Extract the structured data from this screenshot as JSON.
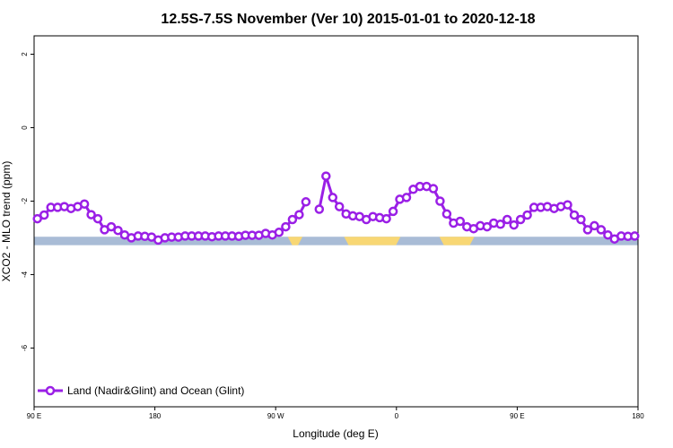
{
  "chart_data": {
    "type": "line",
    "title": "12.5S-7.5S November (Ver 10)   2015-01-01 to 2020-12-18",
    "xlabel": "Longitude (deg E)",
    "ylabel": "XCO2 - MLO trend (ppm)",
    "x_ticks": [
      {
        "value": 90,
        "label": "90 E"
      },
      {
        "value": 180,
        "label": "180"
      },
      {
        "value": 270,
        "label": "90 W"
      },
      {
        "value": 360,
        "label": "0"
      },
      {
        "value": 450,
        "label": "90 E"
      },
      {
        "value": 540,
        "label": "180"
      }
    ],
    "y_ticks": [
      {
        "value": 2,
        "label": "2"
      },
      {
        "value": 0,
        "label": "0"
      },
      {
        "value": -2,
        "label": "-2"
      },
      {
        "value": -4,
        "label": "-4"
      },
      {
        "value": -6,
        "label": "-6"
      }
    ],
    "xlim": [
      90,
      540
    ],
    "ylim": [
      -7.6,
      2.5
    ],
    "legend": {
      "position": "bottom-left"
    },
    "series": [
      {
        "name": "Land (Nadir&Glint) and Ocean (Glint)",
        "color": "#9a1fe6",
        "segments": [
          [
            [
              92.5,
              -2.48
            ],
            [
              97.5,
              -2.38
            ],
            [
              102.5,
              -2.17
            ],
            [
              107.5,
              -2.17
            ],
            [
              112.5,
              -2.15
            ],
            [
              117.5,
              -2.2
            ],
            [
              122.5,
              -2.15
            ],
            [
              127.5,
              -2.08
            ],
            [
              132.5,
              -2.37
            ],
            [
              137.5,
              -2.48
            ],
            [
              142.5,
              -2.78
            ],
            [
              147.5,
              -2.7
            ],
            [
              152.5,
              -2.8
            ],
            [
              157.5,
              -2.92
            ],
            [
              162.5,
              -3.0
            ],
            [
              167.5,
              -2.95
            ],
            [
              172.5,
              -2.96
            ],
            [
              177.5,
              -2.98
            ],
            [
              182.5,
              -3.06
            ],
            [
              187.5,
              -3.0
            ],
            [
              192.5,
              -2.98
            ],
            [
              197.5,
              -2.98
            ],
            [
              202.5,
              -2.95
            ],
            [
              207.5,
              -2.95
            ],
            [
              212.5,
              -2.95
            ],
            [
              217.5,
              -2.95
            ],
            [
              222.5,
              -2.97
            ],
            [
              227.5,
              -2.95
            ],
            [
              232.5,
              -2.95
            ],
            [
              237.5,
              -2.95
            ],
            [
              242.5,
              -2.96
            ],
            [
              247.5,
              -2.93
            ],
            [
              252.5,
              -2.93
            ],
            [
              257.5,
              -2.93
            ],
            [
              262.5,
              -2.88
            ],
            [
              267.5,
              -2.92
            ],
            [
              272.5,
              -2.85
            ],
            [
              277.5,
              -2.7
            ],
            [
              282.5,
              -2.5
            ],
            [
              287.5,
              -2.37
            ],
            [
              292.5,
              -2.02
            ]
          ],
          [
            [
              302.5,
              -2.22
            ],
            [
              307.5,
              -1.32
            ],
            [
              312.5,
              -1.9
            ],
            [
              317.5,
              -2.15
            ],
            [
              322.5,
              -2.35
            ],
            [
              327.5,
              -2.4
            ],
            [
              332.5,
              -2.42
            ],
            [
              337.5,
              -2.5
            ],
            [
              342.5,
              -2.42
            ],
            [
              347.5,
              -2.45
            ],
            [
              352.5,
              -2.48
            ],
            [
              357.5,
              -2.28
            ],
            [
              362.5,
              -1.95
            ],
            [
              367.5,
              -1.9
            ],
            [
              372.5,
              -1.68
            ],
            [
              377.5,
              -1.6
            ],
            [
              382.5,
              -1.6
            ],
            [
              387.5,
              -1.66
            ],
            [
              392.5,
              -2.0
            ],
            [
              397.5,
              -2.35
            ],
            [
              402.5,
              -2.6
            ],
            [
              407.5,
              -2.55
            ],
            [
              412.5,
              -2.7
            ],
            [
              417.5,
              -2.75
            ],
            [
              422.5,
              -2.67
            ],
            [
              427.5,
              -2.7
            ],
            [
              432.5,
              -2.6
            ],
            [
              437.5,
              -2.63
            ],
            [
              442.5,
              -2.5
            ],
            [
              447.5,
              -2.65
            ],
            [
              452.5,
              -2.5
            ],
            [
              457.5,
              -2.38
            ],
            [
              462.5,
              -2.17
            ],
            [
              467.5,
              -2.17
            ],
            [
              472.5,
              -2.15
            ],
            [
              477.5,
              -2.2
            ],
            [
              482.5,
              -2.15
            ],
            [
              487.5,
              -2.1
            ],
            [
              492.5,
              -2.38
            ],
            [
              497.5,
              -2.5
            ],
            [
              502.5,
              -2.78
            ],
            [
              507.5,
              -2.67
            ],
            [
              512.5,
              -2.78
            ],
            [
              517.5,
              -2.92
            ],
            [
              522.5,
              -3.03
            ],
            [
              527.5,
              -2.95
            ],
            [
              532.5,
              -2.96
            ],
            [
              537.5,
              -2.95
            ]
          ]
        ]
      }
    ],
    "surface_band": {
      "y_range": [
        -3.2,
        -2.97
      ],
      "ocean_color": "#a9bcd6",
      "land_color": "#f8d774",
      "land_segments": [
        [
          279,
          290
        ],
        [
          321,
          363
        ],
        [
          392,
          418
        ]
      ]
    }
  }
}
